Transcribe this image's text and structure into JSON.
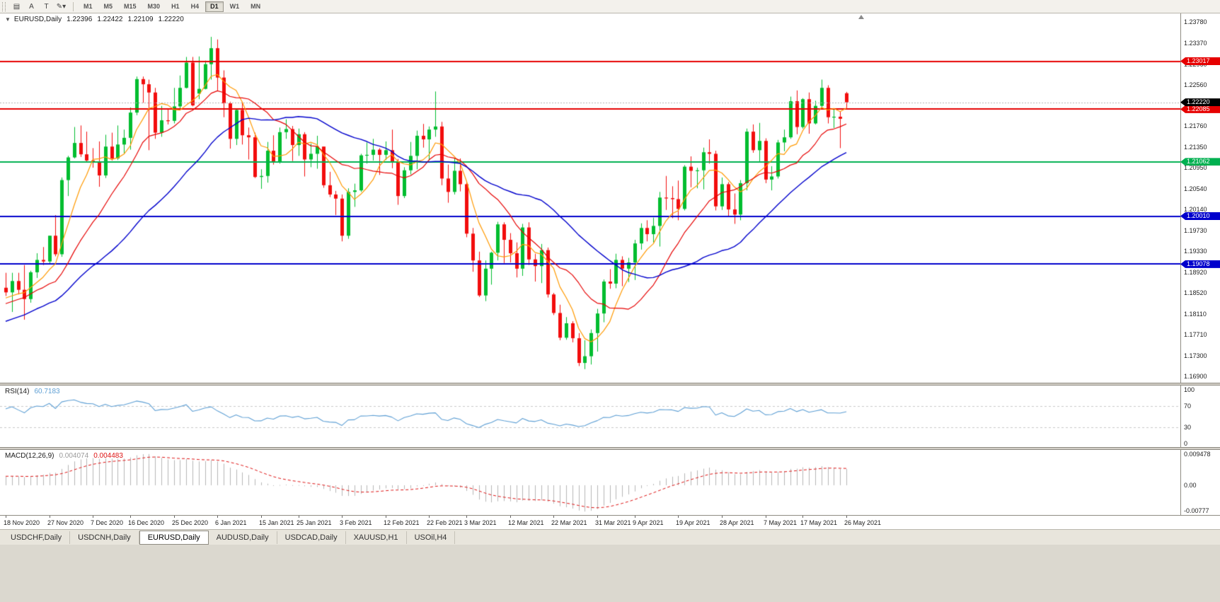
{
  "toolbar": {
    "tools": [
      {
        "name": "templates-grid-icon",
        "glyph": "▤"
      },
      {
        "name": "text-a-tool-button",
        "glyph": "A"
      },
      {
        "name": "text-label-tool-button",
        "glyph": "T"
      },
      {
        "name": "draw-tools-dropdown-button",
        "glyph": "✎▾"
      }
    ],
    "timeframes": [
      "M1",
      "M5",
      "M15",
      "M30",
      "H1",
      "H4",
      "D1",
      "W1",
      "MN"
    ],
    "active_timeframe": "D1"
  },
  "header": {
    "collapse_icon": "▼",
    "symbol": "EURUSD,Daily",
    "open": "1.22396",
    "high": "1.22422",
    "low": "1.22109",
    "close": "1.22220"
  },
  "price_axis": {
    "current": {
      "value": "1.22220",
      "price": 1.2222,
      "bg": "#000000",
      "fg": "#ffffff",
      "line_color": "#b0b0b0"
    }
  },
  "levels": [
    {
      "value": "1.23017",
      "price": 1.23017,
      "color": "#e60000"
    },
    {
      "value": "1.22085",
      "price": 1.22085,
      "color": "#e60000"
    },
    {
      "value": "1.21062",
      "price": 1.21062,
      "color": "#00b050"
    },
    {
      "value": "1.20010",
      "price": 1.2001,
      "color": "#0000cc"
    },
    {
      "value": "1.19078",
      "price": 1.19078,
      "color": "#0000cc"
    }
  ],
  "rsi": {
    "name": "RSI(14)",
    "value": "60.7183",
    "color": "#5e9fd4",
    "axis_labels": [
      "100",
      "70",
      "30",
      "0"
    ],
    "level_lines": [
      70,
      30
    ]
  },
  "macd": {
    "name": "MAC D(12,26,9)",
    "value_main": "0.004074",
    "value_signal": "0.004483",
    "value_main_color": "#9a9a9a",
    "hist_color": "#b6b6b6",
    "signal_color": "#dd1111",
    "axis_labels": [
      "0.009478",
      "0.00",
      "-0.00777"
    ]
  },
  "tabs": {
    "items": [
      "USDCHF,Daily",
      "USDCNH,Daily",
      "EURUSD,Daily",
      "AUDUSD,Daily",
      "USDCAD,Daily",
      "XAUUSD,H1",
      "USOil,H4"
    ],
    "active": "EURUSD,Daily"
  },
  "chart_data": {
    "type": "candlestick",
    "symbol": "EURUSD",
    "timeframe": "Daily",
    "price_range": [
      1.169,
      1.2378
    ],
    "bull_color": "#00bd2f",
    "bear_color": "#f20d0d",
    "ma_colors": {
      "fast": "#ff9900",
      "mid": "#e60000",
      "slow": "#0000cc"
    },
    "y_tick_labels": [
      "1.23780",
      "1.23370",
      "1.22960",
      "1.22560",
      "1.22150",
      "1.21760",
      "1.21350",
      "1.20950",
      "1.20540",
      "1.20140",
      "1.19730",
      "1.19330",
      "1.18920",
      "1.18520",
      "1.18110",
      "1.17710",
      "1.17300",
      "1.16900"
    ],
    "x_tick_labels": [
      "18 Nov 2020",
      "27 Nov 2020",
      "7 Dec 2020",
      "16 Dec 2020",
      "25 Dec 2020",
      "6 Jan 2021",
      "15 Jan 2021",
      "25 Jan 2021",
      "3 Feb 2021",
      "12 Feb 2021",
      "22 Feb 2021",
      "3 Mar 2021",
      "12 Mar 2021",
      "22 Mar 2021",
      "31 Mar 2021",
      "9 Apr 2021",
      "19 Apr 2021",
      "28 Apr 2021",
      "7 May 2021",
      "17 May 2021",
      "26 May 2021"
    ],
    "candles": [
      [
        1.1862,
        1.1891,
        1.1846,
        1.1853
      ],
      [
        1.1853,
        1.1891,
        1.1815,
        1.1875
      ],
      [
        1.1875,
        1.1891,
        1.1849,
        1.1858
      ],
      [
        1.1858,
        1.1906,
        1.18,
        1.184
      ],
      [
        1.184,
        1.1895,
        1.1833,
        1.1892
      ],
      [
        1.1892,
        1.1929,
        1.1881,
        1.1916
      ],
      [
        1.1916,
        1.1941,
        1.1906,
        1.1913
      ],
      [
        1.1913,
        1.1963,
        1.1907,
        1.1963
      ],
      [
        1.1963,
        1.2003,
        1.1923,
        1.1927
      ],
      [
        1.1927,
        1.2076,
        1.1922,
        1.2071
      ],
      [
        1.2071,
        1.2118,
        1.204,
        1.2115
      ],
      [
        1.2115,
        1.2174,
        1.2113,
        1.2143
      ],
      [
        1.2143,
        1.2177,
        1.2116,
        1.2121
      ],
      [
        1.2121,
        1.2165,
        1.2106,
        1.2109
      ],
      [
        1.2109,
        1.2133,
        1.2095,
        1.2107
      ],
      [
        1.2107,
        1.2146,
        1.2058,
        1.208
      ],
      [
        1.208,
        1.2159,
        1.2075,
        1.2136
      ],
      [
        1.2136,
        1.2163,
        1.2109,
        1.2113
      ],
      [
        1.2113,
        1.2177,
        1.211,
        1.214
      ],
      [
        1.214,
        1.2169,
        1.2123,
        1.2153
      ],
      [
        1.2153,
        1.2212,
        1.213,
        1.2202
      ],
      [
        1.2202,
        1.2272,
        1.2197,
        1.2267
      ],
      [
        1.2267,
        1.2272,
        1.2221,
        1.2257
      ],
      [
        1.2257,
        1.2266,
        1.2129,
        1.2241
      ],
      [
        1.2241,
        1.225,
        1.2151,
        1.2163
      ],
      [
        1.2163,
        1.2215,
        1.2155,
        1.2187
      ],
      [
        1.2187,
        1.2209,
        1.2179,
        1.2186
      ],
      [
        1.2186,
        1.225,
        1.2181,
        1.2214
      ],
      [
        1.2214,
        1.2274,
        1.2208,
        1.225
      ],
      [
        1.225,
        1.231,
        1.2249,
        1.2299
      ],
      [
        1.2299,
        1.231,
        1.2214,
        1.2216
      ],
      [
        1.2239,
        1.2311,
        1.2228,
        1.2248
      ],
      [
        1.2248,
        1.2303,
        1.2247,
        1.2296
      ],
      [
        1.2296,
        1.2349,
        1.2266,
        1.2327
      ],
      [
        1.2327,
        1.2344,
        1.2245,
        1.227
      ],
      [
        1.227,
        1.2284,
        1.2193,
        1.222
      ],
      [
        1.222,
        1.2223,
        1.2132,
        1.2151
      ],
      [
        1.2151,
        1.2208,
        1.2139,
        1.2207
      ],
      [
        1.2207,
        1.2223,
        1.214,
        1.2158
      ],
      [
        1.2158,
        1.2173,
        1.2111,
        1.2154
      ],
      [
        1.2154,
        1.2163,
        1.2075,
        1.2077
      ],
      [
        1.2077,
        1.2092,
        1.2054,
        1.2079
      ],
      [
        1.2079,
        1.2145,
        1.2066,
        1.2128
      ],
      [
        1.2128,
        1.2158,
        1.2101,
        1.2105
      ],
      [
        1.2105,
        1.2173,
        1.2103,
        1.2164
      ],
      [
        1.2164,
        1.2189,
        1.2151,
        1.217
      ],
      [
        1.217,
        1.2176,
        1.2108,
        1.2139
      ],
      [
        1.2139,
        1.2171,
        1.2118,
        1.216
      ],
      [
        1.216,
        1.2164,
        1.2078,
        1.2111
      ],
      [
        1.2111,
        1.2142,
        1.2096,
        1.2122
      ],
      [
        1.2122,
        1.2157,
        1.2093,
        1.2136
      ],
      [
        1.2136,
        1.2136,
        1.2056,
        1.2061
      ],
      [
        1.2061,
        1.2087,
        1.2038,
        1.2043
      ],
      [
        1.2043,
        1.205,
        1.2003,
        1.2035
      ],
      [
        1.2035,
        1.2043,
        1.1952,
        1.1963
      ],
      [
        1.1963,
        1.2055,
        1.1957,
        1.2048
      ],
      [
        1.2048,
        1.2064,
        1.2019,
        1.2051
      ],
      [
        1.2051,
        1.2122,
        1.2048,
        1.2119
      ],
      [
        1.2119,
        1.2144,
        1.2103,
        1.212
      ],
      [
        1.212,
        1.2151,
        1.2109,
        1.213
      ],
      [
        1.213,
        1.2133,
        1.2081,
        1.212
      ],
      [
        1.212,
        1.2146,
        1.211,
        1.2129
      ],
      [
        1.2129,
        1.2169,
        1.2094,
        1.2105
      ],
      [
        1.2105,
        1.2112,
        1.2023,
        1.204
      ],
      [
        1.204,
        1.2096,
        1.2036,
        1.209
      ],
      [
        1.209,
        1.2145,
        1.2082,
        1.2118
      ],
      [
        1.2118,
        1.2167,
        1.2092,
        1.2157
      ],
      [
        1.2157,
        1.218,
        1.2134,
        1.215
      ],
      [
        1.215,
        1.2175,
        1.2109,
        1.2169
      ],
      [
        1.2169,
        1.2243,
        1.2155,
        1.2175
      ],
      [
        1.2175,
        1.2184,
        1.2061,
        1.2074
      ],
      [
        1.2074,
        1.2101,
        1.2027,
        1.2048
      ],
      [
        1.2048,
        1.2113,
        1.2043,
        1.2089
      ],
      [
        1.2089,
        1.2113,
        1.2049,
        1.2063
      ],
      [
        1.2063,
        1.2069,
        1.196,
        1.1967
      ],
      [
        1.1967,
        1.1978,
        1.1893,
        1.1915
      ],
      [
        1.1915,
        1.1932,
        1.1844,
        1.1847
      ],
      [
        1.1847,
        1.1915,
        1.1836,
        1.1899
      ],
      [
        1.1899,
        1.1932,
        1.1868,
        1.193
      ],
      [
        1.193,
        1.199,
        1.1915,
        1.1985
      ],
      [
        1.1985,
        1.1989,
        1.191,
        1.1955
      ],
      [
        1.1955,
        1.1968,
        1.1911,
        1.1929
      ],
      [
        1.1929,
        1.195,
        1.1882,
        1.1899
      ],
      [
        1.1899,
        1.1986,
        1.1885,
        1.1979
      ],
      [
        1.1979,
        1.1989,
        1.1906,
        1.1917
      ],
      [
        1.1917,
        1.1928,
        1.1874,
        1.1904
      ],
      [
        1.1904,
        1.1947,
        1.1871,
        1.1935
      ],
      [
        1.1935,
        1.194,
        1.1843,
        1.1849
      ],
      [
        1.1849,
        1.1852,
        1.1809,
        1.1813
      ],
      [
        1.1813,
        1.1829,
        1.176,
        1.1765
      ],
      [
        1.1765,
        1.1805,
        1.1761,
        1.1793
      ],
      [
        1.1793,
        1.1797,
        1.1756,
        1.1764
      ],
      [
        1.1764,
        1.1774,
        1.171,
        1.1716
      ],
      [
        1.1716,
        1.176,
        1.1704,
        1.1729
      ],
      [
        1.1729,
        1.1781,
        1.1713,
        1.1774
      ],
      [
        1.1774,
        1.1821,
        1.1738,
        1.1812
      ],
      [
        1.1812,
        1.1878,
        1.1795,
        1.1874
      ],
      [
        1.1874,
        1.1898,
        1.186,
        1.187
      ],
      [
        1.187,
        1.1928,
        1.1861,
        1.1916
      ],
      [
        1.1916,
        1.1923,
        1.1865,
        1.1899
      ],
      [
        1.1899,
        1.192,
        1.1873,
        1.1911
      ],
      [
        1.1911,
        1.1955,
        1.1877,
        1.1948
      ],
      [
        1.1948,
        1.1987,
        1.1936,
        1.1978
      ],
      [
        1.1978,
        1.1993,
        1.1952,
        1.1966
      ],
      [
        1.1966,
        1.1998,
        1.195,
        1.1982
      ],
      [
        1.1982,
        1.2048,
        1.1942,
        1.2037
      ],
      [
        1.2037,
        1.2079,
        1.2013,
        1.2036
      ],
      [
        1.2036,
        1.2059,
        1.1997,
        1.2034
      ],
      [
        1.2034,
        1.207,
        1.1993,
        1.2015
      ],
      [
        1.2015,
        1.21,
        1.2012,
        1.2097
      ],
      [
        1.2097,
        1.2117,
        1.2057,
        1.2089
      ],
      [
        1.2089,
        1.2095,
        1.2055,
        1.209
      ],
      [
        1.209,
        1.2134,
        1.2053,
        1.2125
      ],
      [
        1.2125,
        1.215,
        1.2103,
        1.2122
      ],
      [
        1.2122,
        1.2128,
        1.2012,
        1.202
      ],
      [
        1.202,
        1.2076,
        1.2013,
        1.2063
      ],
      [
        1.2063,
        1.2067,
        1.1999,
        1.2014
      ],
      [
        1.2014,
        1.2045,
        1.1986,
        1.2004
      ],
      [
        1.2004,
        1.2071,
        1.1993,
        1.2065
      ],
      [
        1.2065,
        1.2171,
        1.2051,
        1.2165
      ],
      [
        1.2165,
        1.2179,
        1.2124,
        1.2129
      ],
      [
        1.2129,
        1.2182,
        1.2106,
        1.2147
      ],
      [
        1.2147,
        1.2152,
        1.2065,
        1.2072
      ],
      [
        1.2072,
        1.2098,
        1.2051,
        1.2078
      ],
      [
        1.2078,
        1.2149,
        1.2074,
        1.2144
      ],
      [
        1.2144,
        1.2169,
        1.2127,
        1.2154
      ],
      [
        1.2154,
        1.2233,
        1.2151,
        1.2224
      ],
      [
        1.2224,
        1.2245,
        1.216,
        1.2174
      ],
      [
        1.2174,
        1.223,
        1.2171,
        1.2228
      ],
      [
        1.2228,
        1.2241,
        1.2161,
        1.2181
      ],
      [
        1.2181,
        1.2225,
        1.2179,
        1.2215
      ],
      [
        1.2215,
        1.2266,
        1.2212,
        1.225
      ],
      [
        1.225,
        1.2255,
        1.2181,
        1.2193
      ],
      [
        1.2193,
        1.221,
        1.2172,
        1.2194
      ],
      [
        1.2194,
        1.2205,
        1.2133,
        1.219
      ],
      [
        1.22396,
        1.22422,
        1.22109,
        1.2222
      ]
    ]
  }
}
